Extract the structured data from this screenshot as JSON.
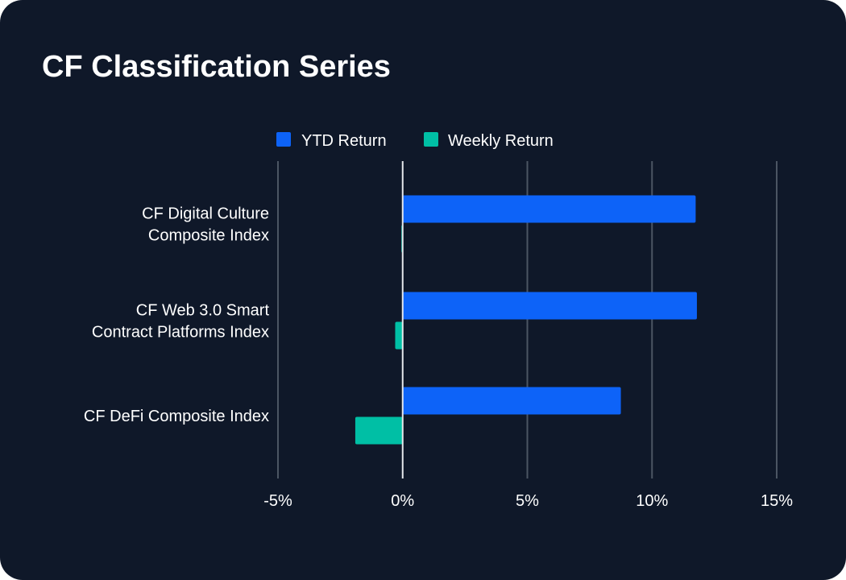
{
  "title": "CF Classification Series",
  "colors": {
    "background": "#0f1829",
    "ytd": "#0d63f8",
    "weekly": "#00bfa5",
    "grid": "#4b5563",
    "zero_line": "#e5e7eb",
    "text": "#ffffff"
  },
  "chart_data": {
    "type": "bar",
    "orientation": "horizontal",
    "title": "CF Classification Series",
    "categories": [
      [
        "CF Digital Culture",
        "Composite Index"
      ],
      [
        "CF Web 3.0 Smart",
        "Contract Platforms Index"
      ],
      [
        "CF DeFi Composite Index"
      ]
    ],
    "series": [
      {
        "name": "YTD Return",
        "color": "#0d63f8",
        "values": [
          11.75,
          11.8,
          8.75
        ]
      },
      {
        "name": "Weekly Return",
        "color": "#00bfa5",
        "values": [
          -0.05,
          -0.3,
          -1.9
        ]
      }
    ],
    "xlim": [
      -5,
      15
    ],
    "x_ticks": [
      -5,
      0,
      5,
      10,
      15
    ],
    "x_tick_labels": [
      "-5%",
      "0%",
      "5%",
      "10%",
      "15%"
    ],
    "xlabel": "",
    "ylabel": "",
    "grid": true,
    "legend_position": "top-center"
  }
}
